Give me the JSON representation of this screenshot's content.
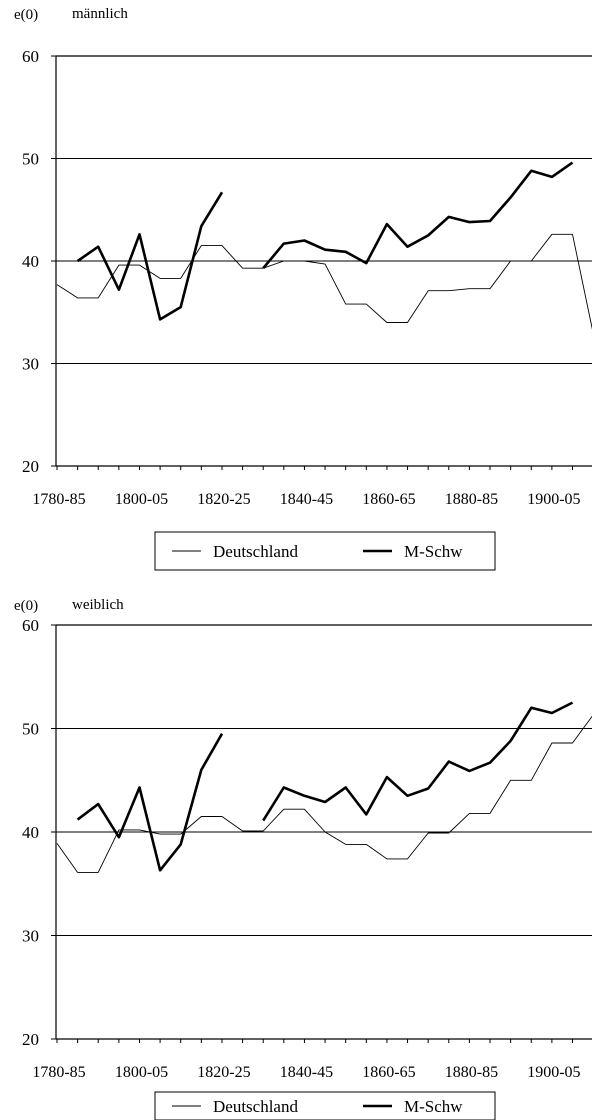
{
  "chart_data": [
    {
      "type": "line",
      "ylabel": "e(0)",
      "title": "männlich",
      "ylim": [
        20,
        60
      ],
      "yticks": [
        "20",
        "30",
        "40",
        "50",
        "60"
      ],
      "xtick_labels": [
        "1780-85",
        "1800-05",
        "1820-25",
        "1840-45",
        "1860-65",
        "1880-85",
        "1900-05"
      ],
      "x_categories": [
        "1780-85",
        "1785-90",
        "1790-95",
        "1795-1800",
        "1800-05",
        "1805-10",
        "1810-15",
        "1815-20",
        "1820-25",
        "1825-30",
        "1830-35",
        "1835-40",
        "1840-45",
        "1845-50",
        "1850-55",
        "1855-60",
        "1860-65",
        "1865-70",
        "1870-75",
        "1875-80",
        "1880-85",
        "1885-90",
        "1890-95",
        "1895-1900",
        "1900-05",
        "1905-10",
        "1910-15"
      ],
      "grid": true,
      "legend": "bottom",
      "series": [
        {
          "name": "Deutschland",
          "style": "thin",
          "values": [
            37.7,
            36.4,
            36.4,
            39.6,
            39.6,
            38.3,
            38.3,
            41.5,
            41.5,
            39.3,
            39.3,
            40.0,
            40.0,
            39.7,
            35.8,
            35.8,
            34.0,
            34.0,
            37.1,
            37.1,
            37.3,
            37.3,
            40.0,
            40.0,
            42.6,
            42.6,
            33.0
          ]
        },
        {
          "name": "M-Schw",
          "style": "thick",
          "values": [
            null,
            40.0,
            41.4,
            37.2,
            42.6,
            34.3,
            35.5,
            43.4,
            46.7,
            null,
            39.3,
            41.7,
            42.0,
            41.1,
            40.9,
            39.8,
            43.6,
            41.4,
            42.5,
            44.3,
            43.8,
            43.9,
            46.2,
            48.8,
            48.2,
            49.6,
            null
          ]
        }
      ]
    },
    {
      "type": "line",
      "ylabel": "e(0)",
      "title": "weiblich",
      "ylim": [
        20,
        60
      ],
      "yticks": [
        "20",
        "30",
        "40",
        "50",
        "60"
      ],
      "xtick_labels": [
        "1780-85",
        "1800-05",
        "1820-25",
        "1840-45",
        "1860-65",
        "1880-85",
        "1900-05"
      ],
      "x_categories": [
        "1780-85",
        "1785-90",
        "1790-95",
        "1795-1800",
        "1800-05",
        "1805-10",
        "1810-15",
        "1815-20",
        "1820-25",
        "1825-30",
        "1830-35",
        "1835-40",
        "1840-45",
        "1845-50",
        "1850-55",
        "1855-60",
        "1860-65",
        "1865-70",
        "1870-75",
        "1875-80",
        "1880-85",
        "1885-90",
        "1890-95",
        "1895-1900",
        "1900-05",
        "1905-10",
        "1910-15"
      ],
      "grid": true,
      "legend": "bottom",
      "series": [
        {
          "name": "Deutschland",
          "style": "thin",
          "values": [
            38.9,
            36.1,
            36.1,
            40.2,
            40.2,
            39.8,
            39.8,
            41.5,
            41.5,
            40.1,
            40.1,
            42.2,
            42.2,
            40.0,
            38.8,
            38.8,
            37.4,
            37.4,
            39.9,
            39.9,
            41.8,
            41.8,
            45.0,
            45.0,
            48.6,
            48.6,
            51.3
          ]
        },
        {
          "name": "M-Schw",
          "style": "thick",
          "values": [
            null,
            41.2,
            42.7,
            39.5,
            44.3,
            36.3,
            38.8,
            46.0,
            49.5,
            null,
            41.1,
            44.3,
            43.5,
            42.9,
            44.3,
            41.7,
            45.3,
            43.5,
            44.2,
            46.8,
            45.9,
            46.7,
            48.8,
            52.0,
            51.5,
            52.5,
            null
          ]
        }
      ]
    }
  ]
}
